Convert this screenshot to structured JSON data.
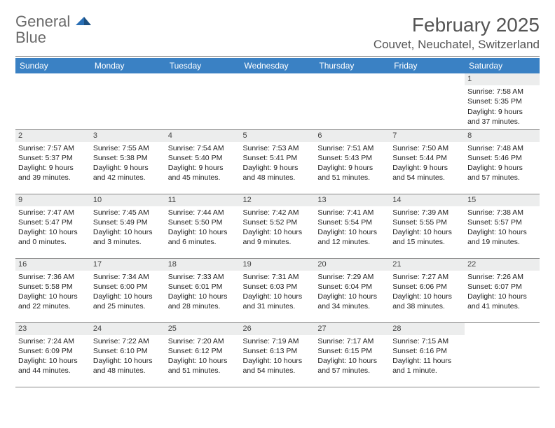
{
  "header": {
    "logo_word1": "General",
    "logo_word2": "Blue",
    "month_title": "February 2025",
    "location": "Couvet, Neuchatel, Switzerland"
  },
  "style": {
    "header_bg": "#3a81c4",
    "header_fg": "#ffffff",
    "daynum_bg": "#eceded",
    "page_bg": "#ffffff",
    "rule_color": "#888888",
    "text_color": "#222222",
    "logo_gray": "#6b6b6b",
    "logo_blue": "#2a6fb5",
    "title_fontsize": 28,
    "location_fontsize": 17,
    "dayheader_fontsize": 12,
    "body_fontsize": 10.5
  },
  "calendar": {
    "type": "table",
    "day_labels": [
      "Sunday",
      "Monday",
      "Tuesday",
      "Wednesday",
      "Thursday",
      "Friday",
      "Saturday"
    ],
    "weeks": [
      [
        null,
        null,
        null,
        null,
        null,
        null,
        {
          "n": "1",
          "sr": "7:58 AM",
          "ss": "5:35 PM",
          "dl": "9 hours and 37 minutes."
        }
      ],
      [
        {
          "n": "2",
          "sr": "7:57 AM",
          "ss": "5:37 PM",
          "dl": "9 hours and 39 minutes."
        },
        {
          "n": "3",
          "sr": "7:55 AM",
          "ss": "5:38 PM",
          "dl": "9 hours and 42 minutes."
        },
        {
          "n": "4",
          "sr": "7:54 AM",
          "ss": "5:40 PM",
          "dl": "9 hours and 45 minutes."
        },
        {
          "n": "5",
          "sr": "7:53 AM",
          "ss": "5:41 PM",
          "dl": "9 hours and 48 minutes."
        },
        {
          "n": "6",
          "sr": "7:51 AM",
          "ss": "5:43 PM",
          "dl": "9 hours and 51 minutes."
        },
        {
          "n": "7",
          "sr": "7:50 AM",
          "ss": "5:44 PM",
          "dl": "9 hours and 54 minutes."
        },
        {
          "n": "8",
          "sr": "7:48 AM",
          "ss": "5:46 PM",
          "dl": "9 hours and 57 minutes."
        }
      ],
      [
        {
          "n": "9",
          "sr": "7:47 AM",
          "ss": "5:47 PM",
          "dl": "10 hours and 0 minutes."
        },
        {
          "n": "10",
          "sr": "7:45 AM",
          "ss": "5:49 PM",
          "dl": "10 hours and 3 minutes."
        },
        {
          "n": "11",
          "sr": "7:44 AM",
          "ss": "5:50 PM",
          "dl": "10 hours and 6 minutes."
        },
        {
          "n": "12",
          "sr": "7:42 AM",
          "ss": "5:52 PM",
          "dl": "10 hours and 9 minutes."
        },
        {
          "n": "13",
          "sr": "7:41 AM",
          "ss": "5:54 PM",
          "dl": "10 hours and 12 minutes."
        },
        {
          "n": "14",
          "sr": "7:39 AM",
          "ss": "5:55 PM",
          "dl": "10 hours and 15 minutes."
        },
        {
          "n": "15",
          "sr": "7:38 AM",
          "ss": "5:57 PM",
          "dl": "10 hours and 19 minutes."
        }
      ],
      [
        {
          "n": "16",
          "sr": "7:36 AM",
          "ss": "5:58 PM",
          "dl": "10 hours and 22 minutes."
        },
        {
          "n": "17",
          "sr": "7:34 AM",
          "ss": "6:00 PM",
          "dl": "10 hours and 25 minutes."
        },
        {
          "n": "18",
          "sr": "7:33 AM",
          "ss": "6:01 PM",
          "dl": "10 hours and 28 minutes."
        },
        {
          "n": "19",
          "sr": "7:31 AM",
          "ss": "6:03 PM",
          "dl": "10 hours and 31 minutes."
        },
        {
          "n": "20",
          "sr": "7:29 AM",
          "ss": "6:04 PM",
          "dl": "10 hours and 34 minutes."
        },
        {
          "n": "21",
          "sr": "7:27 AM",
          "ss": "6:06 PM",
          "dl": "10 hours and 38 minutes."
        },
        {
          "n": "22",
          "sr": "7:26 AM",
          "ss": "6:07 PM",
          "dl": "10 hours and 41 minutes."
        }
      ],
      [
        {
          "n": "23",
          "sr": "7:24 AM",
          "ss": "6:09 PM",
          "dl": "10 hours and 44 minutes."
        },
        {
          "n": "24",
          "sr": "7:22 AM",
          "ss": "6:10 PM",
          "dl": "10 hours and 48 minutes."
        },
        {
          "n": "25",
          "sr": "7:20 AM",
          "ss": "6:12 PM",
          "dl": "10 hours and 51 minutes."
        },
        {
          "n": "26",
          "sr": "7:19 AM",
          "ss": "6:13 PM",
          "dl": "10 hours and 54 minutes."
        },
        {
          "n": "27",
          "sr": "7:17 AM",
          "ss": "6:15 PM",
          "dl": "10 hours and 57 minutes."
        },
        {
          "n": "28",
          "sr": "7:15 AM",
          "ss": "6:16 PM",
          "dl": "11 hours and 1 minute."
        },
        null
      ]
    ],
    "labels": {
      "sunrise": "Sunrise: ",
      "sunset": "Sunset: ",
      "daylight": "Daylight: "
    }
  }
}
